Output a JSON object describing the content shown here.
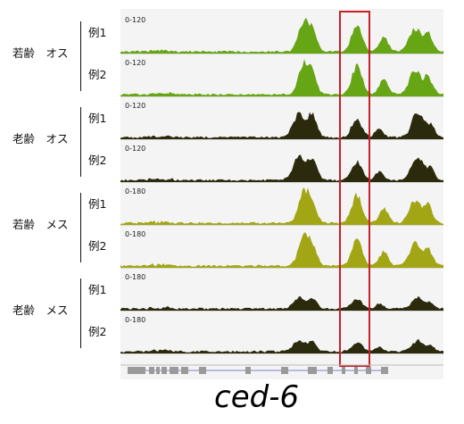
{
  "groups": [
    {
      "label": "若齢　オス",
      "reps": [
        "例1",
        "例2"
      ]
    },
    {
      "label": "老齢　オス",
      "reps": [
        "例1",
        "例2"
      ]
    },
    {
      "label": "若齢　メス",
      "reps": [
        "例1",
        "例2"
      ]
    },
    {
      "label": "老齢　メス",
      "reps": [
        "例1",
        "例2"
      ]
    }
  ],
  "tracks": [
    {
      "range": "0-120",
      "color": "#66a514",
      "profile": "young"
    },
    {
      "range": "0-120",
      "color": "#66a514",
      "profile": "young"
    },
    {
      "range": "0-120",
      "color": "#2c2a0c",
      "profile": "old"
    },
    {
      "range": "0-120",
      "color": "#2c2a0c",
      "profile": "old"
    },
    {
      "range": "0-180",
      "color": "#a2a615",
      "profile": "young"
    },
    {
      "range": "0-180",
      "color": "#a2a615",
      "profile": "young"
    },
    {
      "range": "0-180",
      "color": "#2c2a0c",
      "profile": "oldsmall"
    },
    {
      "range": "0-180",
      "color": "#2c2a0c",
      "profile": "oldsmall"
    }
  ],
  "highlight_color": "#c8202a",
  "gene_name": "ced-6"
}
